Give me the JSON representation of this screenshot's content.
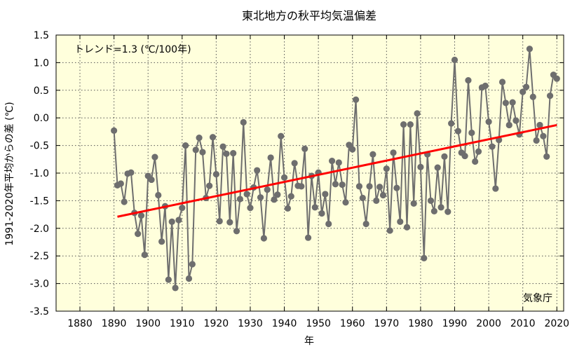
{
  "chart_data": {
    "type": "line",
    "title": "東北地方の秋平均気温偏差",
    "xlabel": "年",
    "ylabel": "1991-2020年平均からの差 (℃)",
    "xlim": [
      1873,
      2022
    ],
    "ylim": [
      -3.5,
      1.5
    ],
    "xticks": [
      1880,
      1890,
      1900,
      1910,
      1920,
      1930,
      1940,
      1950,
      1960,
      1970,
      1980,
      1990,
      2000,
      2010,
      2020
    ],
    "yticks": [
      -3.5,
      -3.0,
      -2.5,
      -2.0,
      -1.5,
      -1.0,
      -0.5,
      0.0,
      0.5,
      1.0,
      1.5
    ],
    "ytick_labels": [
      "-3.5",
      "-3.0",
      "-2.5",
      "-2.0",
      "-1.5",
      "-1.0",
      "-0.5",
      "0.0",
      "0.5",
      "1.0",
      "1.5"
    ],
    "grid": true,
    "annotation_trend": "トレンド=1.3 (℃/100年)",
    "source": "気象庁",
    "colors": {
      "series": "#6e6e6e",
      "trend": "#ff0000",
      "plot_bg": "#ffffdc",
      "grid": "#555555"
    },
    "series": [
      {
        "x": [
          1890,
          1891,
          1892,
          1893,
          1894,
          1895,
          1896,
          1897,
          1898,
          1899,
          1900,
          1901,
          1902,
          1903,
          1904,
          1905,
          1906,
          1907,
          1908,
          1909,
          1910,
          1911,
          1912,
          1913,
          1914,
          1915,
          1916,
          1917,
          1918,
          1919,
          1920,
          1921,
          1922,
          1923,
          1924,
          1925,
          1926,
          1927,
          1928,
          1929,
          1930,
          1931,
          1932,
          1933,
          1934,
          1935,
          1936,
          1937,
          1938,
          1939,
          1940,
          1941,
          1942,
          1943,
          1944,
          1945,
          1946,
          1947,
          1948,
          1949,
          1950,
          1951,
          1952,
          1953,
          1954,
          1955,
          1956,
          1957,
          1958,
          1959,
          1960,
          1961,
          1962,
          1963,
          1964,
          1965,
          1966,
          1967,
          1968,
          1969,
          1970,
          1971,
          1972,
          1973,
          1974,
          1975,
          1976,
          1977,
          1978,
          1979,
          1980,
          1981,
          1982,
          1983,
          1984,
          1985,
          1986,
          1987,
          1988,
          1989,
          1990,
          1991,
          1992,
          1993,
          1994,
          1995,
          1996,
          1997,
          1998,
          1999,
          2000,
          2001,
          2002,
          2003,
          2004,
          2005,
          2006,
          2007,
          2008,
          2009,
          2010,
          2011,
          2012,
          2013,
          2014,
          2015,
          2016,
          2017,
          2018,
          2019,
          2020
        ],
        "values": [
          -0.23,
          -1.22,
          -1.19,
          -1.52,
          -1.01,
          -0.99,
          -1.72,
          -2.1,
          -1.77,
          -2.48,
          -1.05,
          -1.12,
          -0.71,
          -1.4,
          -2.24,
          -1.6,
          -2.93,
          -1.88,
          -3.08,
          -1.85,
          -1.63,
          -0.5,
          -2.91,
          -2.65,
          -0.58,
          -0.36,
          -0.62,
          -1.45,
          -1.23,
          -0.35,
          -1.02,
          -1.87,
          -0.52,
          -0.65,
          -1.89,
          -0.64,
          -2.05,
          -1.47,
          -0.08,
          -1.38,
          -1.63,
          -1.26,
          -0.95,
          -1.44,
          -2.18,
          -1.3,
          -0.72,
          -1.48,
          -1.39,
          -0.33,
          -1.08,
          -1.64,
          -1.42,
          -0.82,
          -1.23,
          -1.24,
          -0.56,
          -2.17,
          -1.05,
          -1.62,
          -0.99,
          -1.73,
          -1.38,
          -1.92,
          -0.78,
          -1.2,
          -0.81,
          -1.21,
          -1.53,
          -0.49,
          -0.57,
          0.33,
          -1.24,
          -1.45,
          -1.92,
          -1.24,
          -0.66,
          -1.5,
          -1.25,
          -1.4,
          -0.92,
          -2.04,
          -0.63,
          -1.27,
          -1.88,
          -0.12,
          -1.98,
          -0.12,
          -1.55,
          0.08,
          -0.89,
          -2.54,
          -0.66,
          -1.5,
          -1.69,
          -0.9,
          -1.62,
          -0.7,
          -1.7,
          -0.1,
          1.05,
          -0.24,
          -0.63,
          -0.69,
          0.68,
          -0.27,
          -0.79,
          -0.61,
          0.55,
          0.58,
          -0.07,
          -0.52,
          -1.28,
          -0.4,
          0.65,
          0.27,
          -0.13,
          0.28,
          -0.05,
          -0.3,
          0.47,
          0.56,
          1.25,
          0.38,
          -0.41,
          -0.13,
          -0.33,
          -0.7,
          0.4,
          0.78,
          0.71
        ]
      }
    ],
    "trend": {
      "x": [
        1891,
        2020
      ],
      "values": [
        -1.79,
        -0.13
      ]
    }
  }
}
